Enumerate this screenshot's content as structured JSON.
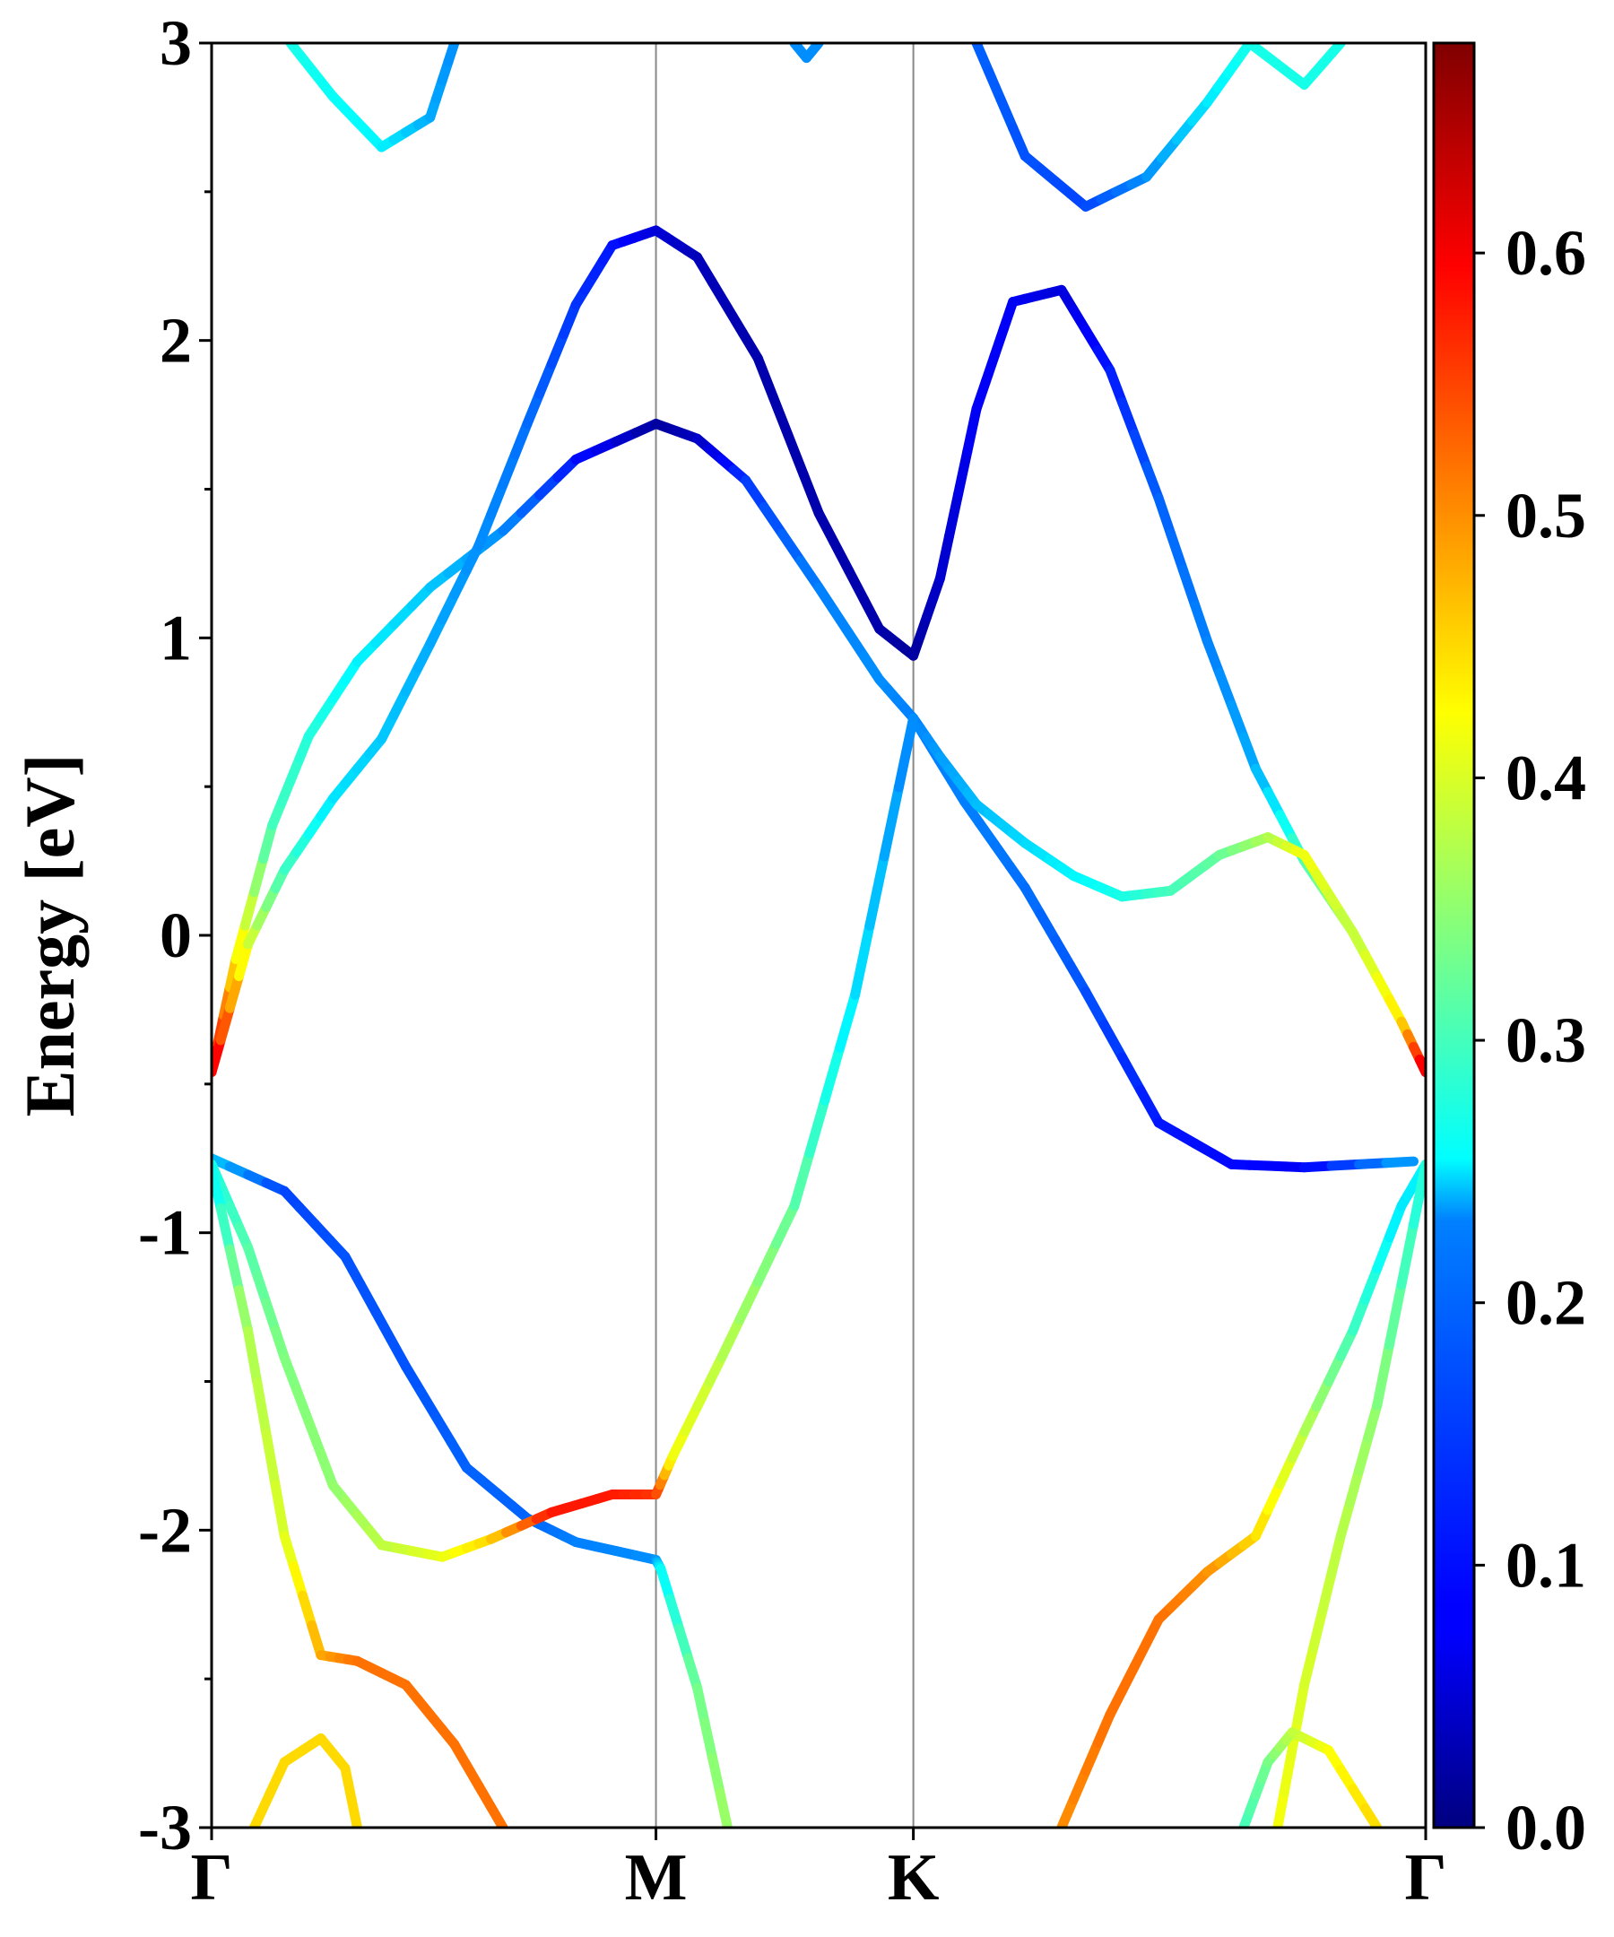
{
  "chart_data": {
    "type": "line",
    "subtype": "electronic band structure with colored projection",
    "ylabel": "Energy [eV]",
    "ylim": [
      -3,
      3
    ],
    "yticks": [
      "3",
      "2",
      "1",
      "0",
      "-1",
      "-2",
      "-3"
    ],
    "high_symmetry_points": [
      {
        "label": "Γ",
        "k": 0.0
      },
      {
        "label": "M",
        "k": 0.366
      },
      {
        "label": "K",
        "k": 0.578
      },
      {
        "label": "Γ",
        "k": 1.0
      }
    ],
    "colorbar": {
      "colormap": "jet",
      "range": [
        0.0,
        0.68
      ],
      "tick_labels": [
        "0.0",
        "0.1",
        "0.2",
        "0.3",
        "0.4",
        "0.5",
        "0.6"
      ]
    },
    "series": [
      {
        "points": [
          [
            0.0,
            -0.46,
            0.62
          ],
          [
            0.02,
            -0.08,
            0.44
          ],
          [
            0.05,
            0.37,
            0.3
          ],
          [
            0.08,
            0.67,
            0.28
          ],
          [
            0.12,
            0.92,
            0.25
          ],
          [
            0.18,
            1.17,
            0.22
          ],
          [
            0.24,
            1.36,
            0.18
          ],
          [
            0.3,
            1.6,
            0.1
          ],
          [
            0.366,
            1.72,
            0.02
          ],
          [
            0.4,
            1.67,
            0.04
          ],
          [
            0.44,
            1.53,
            0.12
          ],
          [
            0.5,
            1.17,
            0.17
          ],
          [
            0.55,
            0.86,
            0.18
          ],
          [
            0.578,
            0.73,
            0.17
          ],
          [
            0.62,
            0.45,
            0.17
          ],
          [
            0.67,
            0.16,
            0.16
          ],
          [
            0.72,
            -0.19,
            0.14
          ],
          [
            0.78,
            -0.63,
            0.1
          ],
          [
            0.84,
            -0.77,
            0.09
          ],
          [
            0.9,
            -0.78,
            0.08
          ],
          [
            0.99,
            -0.76,
            0.2
          ]
        ]
      },
      {
        "points": [
          [
            0.0,
            -0.46,
            0.62
          ],
          [
            0.03,
            -0.03,
            0.4
          ],
          [
            0.06,
            0.22,
            0.3
          ],
          [
            0.1,
            0.46,
            0.24
          ],
          [
            0.14,
            0.66,
            0.22
          ],
          [
            0.18,
            0.98,
            0.2
          ],
          [
            0.22,
            1.31,
            0.18
          ],
          [
            0.26,
            1.72,
            0.16
          ],
          [
            0.3,
            2.12,
            0.12
          ],
          [
            0.33,
            2.32,
            0.1
          ],
          [
            0.366,
            2.37,
            0.06
          ],
          [
            0.4,
            2.28,
            0.04
          ],
          [
            0.45,
            1.94,
            0.03
          ],
          [
            0.5,
            1.42,
            0.03
          ],
          [
            0.55,
            1.03,
            0.03
          ],
          [
            0.578,
            0.94,
            0.02
          ],
          [
            0.6,
            1.2,
            0.05
          ],
          [
            0.63,
            1.77,
            0.08
          ],
          [
            0.66,
            2.13,
            0.08
          ],
          [
            0.7,
            2.17,
            0.06
          ],
          [
            0.74,
            1.9,
            0.1
          ],
          [
            0.78,
            1.47,
            0.15
          ],
          [
            0.82,
            0.99,
            0.17
          ],
          [
            0.86,
            0.56,
            0.2
          ],
          [
            0.9,
            0.25,
            0.3
          ],
          [
            0.94,
            0.01,
            0.38
          ],
          [
            0.98,
            -0.29,
            0.44
          ],
          [
            1.0,
            -0.46,
            0.62
          ]
        ]
      },
      {
        "points": [
          [
            0.578,
            0.73,
            0.17
          ],
          [
            0.6,
            0.6,
            0.19
          ],
          [
            0.63,
            0.44,
            0.21
          ],
          [
            0.67,
            0.31,
            0.23
          ],
          [
            0.71,
            0.2,
            0.25
          ],
          [
            0.75,
            0.13,
            0.27
          ],
          [
            0.79,
            0.15,
            0.3
          ],
          [
            0.83,
            0.27,
            0.32
          ],
          [
            0.87,
            0.33,
            0.37
          ],
          [
            0.9,
            0.27,
            0.42
          ],
          [
            0.94,
            0.01,
            0.38
          ],
          [
            0.98,
            -0.29,
            0.44
          ],
          [
            1.0,
            -0.46,
            0.62
          ]
        ]
      },
      {
        "points": [
          [
            0.0,
            -0.75,
            0.22
          ],
          [
            0.06,
            -0.86,
            0.13
          ],
          [
            0.11,
            -1.08,
            0.14
          ],
          [
            0.16,
            -1.45,
            0.14
          ],
          [
            0.21,
            -1.79,
            0.15
          ],
          [
            0.26,
            -1.96,
            0.15
          ],
          [
            0.3,
            -2.04,
            0.17
          ],
          [
            0.366,
            -2.1,
            0.18
          ],
          [
            0.37,
            -2.13,
            0.25
          ],
          [
            0.4,
            -2.53,
            0.33
          ],
          [
            0.425,
            -3.0,
            0.36
          ]
        ]
      },
      {
        "points": [
          [
            0.0,
            -0.77,
            0.27
          ],
          [
            0.03,
            -1.05,
            0.31
          ],
          [
            0.06,
            -1.42,
            0.34
          ],
          [
            0.1,
            -1.85,
            0.35
          ],
          [
            0.14,
            -2.05,
            0.38
          ],
          [
            0.19,
            -2.09,
            0.41
          ],
          [
            0.23,
            -2.03,
            0.45
          ],
          [
            0.28,
            -1.94,
            0.58
          ],
          [
            0.33,
            -1.88,
            0.58
          ],
          [
            0.366,
            -1.88,
            0.56
          ],
          [
            0.38,
            -1.75,
            0.42
          ],
          [
            0.42,
            -1.42,
            0.38
          ],
          [
            0.48,
            -0.91,
            0.32
          ],
          [
            0.53,
            -0.2,
            0.24
          ],
          [
            0.578,
            0.73,
            0.17
          ]
        ]
      },
      {
        "points": [
          [
            0.0,
            -0.78,
            0.25
          ],
          [
            0.03,
            -1.33,
            0.37
          ],
          [
            0.06,
            -2.02,
            0.4
          ],
          [
            0.09,
            -2.42,
            0.48
          ],
          [
            0.12,
            -2.44,
            0.52
          ],
          [
            0.16,
            -2.52,
            0.52
          ],
          [
            0.2,
            -2.72,
            0.52
          ],
          [
            0.24,
            -3.0,
            0.52
          ]
        ]
      },
      {
        "points": [
          [
            0.7,
            -3.0,
            0.5
          ],
          [
            0.74,
            -2.62,
            0.52
          ],
          [
            0.78,
            -2.3,
            0.52
          ],
          [
            0.82,
            -2.14,
            0.5
          ],
          [
            0.86,
            -2.02,
            0.45
          ],
          [
            0.9,
            -1.67,
            0.38
          ],
          [
            0.94,
            -1.33,
            0.3
          ],
          [
            0.98,
            -0.91,
            0.24
          ],
          [
            1.0,
            -0.77,
            0.25
          ]
        ]
      },
      {
        "points": [
          [
            0.878,
            -3.0,
            0.42
          ],
          [
            0.9,
            -2.52,
            0.4
          ],
          [
            0.93,
            -2.02,
            0.38
          ],
          [
            0.96,
            -1.58,
            0.35
          ],
          [
            1.0,
            -0.77,
            0.27
          ]
        ]
      },
      {
        "points": [
          [
            0.85,
            -3.0,
            0.3
          ],
          [
            0.87,
            -2.78,
            0.33
          ],
          [
            0.89,
            -2.68,
            0.38
          ],
          [
            0.92,
            -2.74,
            0.42
          ],
          [
            0.96,
            -3.0,
            0.45
          ]
        ]
      },
      {
        "points": [
          [
            0.035,
            -3.0,
            0.45
          ],
          [
            0.06,
            -2.78,
            0.45
          ],
          [
            0.09,
            -2.7,
            0.45
          ],
          [
            0.11,
            -2.8,
            0.45
          ],
          [
            0.12,
            -3.0,
            0.45
          ]
        ]
      },
      {
        "points": [
          [
            0.065,
            3.0,
            0.27
          ],
          [
            0.1,
            2.82,
            0.26
          ],
          [
            0.14,
            2.65,
            0.25
          ],
          [
            0.18,
            2.75,
            0.2
          ],
          [
            0.2,
            3.0,
            0.18
          ]
        ]
      },
      {
        "points": [
          [
            0.48,
            3.0,
            0.18
          ],
          [
            0.49,
            2.95,
            0.18
          ],
          [
            0.5,
            3.0,
            0.18
          ]
        ]
      },
      {
        "points": [
          [
            0.63,
            3.0,
            0.15
          ],
          [
            0.67,
            2.62,
            0.14
          ],
          [
            0.72,
            2.45,
            0.13
          ],
          [
            0.77,
            2.55,
            0.18
          ],
          [
            0.82,
            2.8,
            0.24
          ],
          [
            0.855,
            3.0,
            0.27
          ],
          [
            0.9,
            2.86,
            0.27
          ],
          [
            0.93,
            3.0,
            0.27
          ]
        ]
      }
    ]
  }
}
